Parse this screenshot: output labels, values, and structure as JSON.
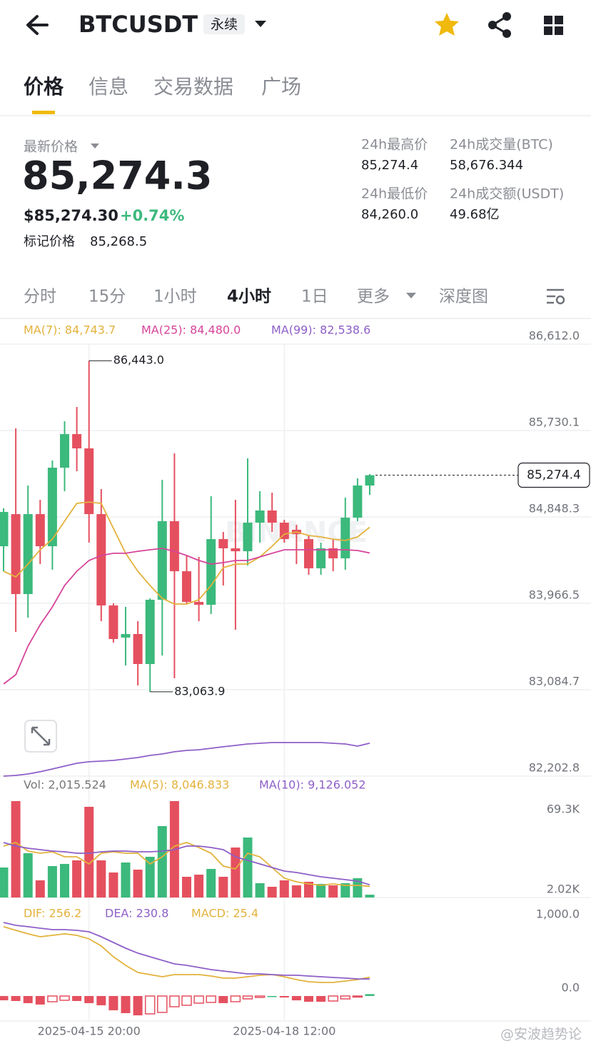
{
  "header": {
    "symbol": "BTCUSDT",
    "tag": "永续"
  },
  "tabs": {
    "items": [
      "价格",
      "信息",
      "交易数据",
      "广场"
    ],
    "active": 0
  },
  "ticker": {
    "last_price_label": "最新价格",
    "last_price": "85,274.3",
    "usd_price": "$85,274.30",
    "change": "+0.74%",
    "mark_label": "标记价格",
    "mark_price": "85,268.5",
    "stats": [
      {
        "label": "24h最高价",
        "value": "85,274.4"
      },
      {
        "label": "24h成交量(BTC)",
        "value": "58,676.344"
      },
      {
        "label": "24h最低价",
        "value": "84,260.0"
      },
      {
        "label": "24h成交额(USDT)",
        "value": "49.68亿"
      }
    ]
  },
  "intervals": {
    "items": [
      "分时",
      "15分",
      "1小时",
      "4小时",
      "1日",
      "更多",
      "深度图"
    ],
    "active": 3
  },
  "footer_watermark": "@安波趋势论",
  "chart_data": [
    {
      "type": "candlestick",
      "x": [
        "2025-04-14 16:00",
        "2025-04-14 20:00",
        "2025-04-15 00:00",
        "2025-04-15 04:00",
        "2025-04-15 08:00",
        "2025-04-15 12:00",
        "2025-04-15 16:00",
        "2025-04-15 20:00",
        "2025-04-16 00:00",
        "2025-04-16 04:00",
        "2025-04-16 08:00",
        "2025-04-16 12:00",
        "2025-04-16 16:00",
        "2025-04-16 20:00",
        "2025-04-17 00:00",
        "2025-04-17 04:00",
        "2025-04-17 08:00",
        "2025-04-17 12:00",
        "2025-04-17 16:00",
        "2025-04-17 20:00",
        "2025-04-18 00:00",
        "2025-04-18 04:00",
        "2025-04-18 08:00",
        "2025-04-18 12:00",
        "2025-04-18 16:00",
        "2025-04-18 20:00",
        "2025-04-19 00:00",
        "2025-04-19 04:00",
        "2025-04-19 08:00",
        "2025-04-19 12:00",
        "2025-04-19 16:00"
      ],
      "open": [
        84549,
        84877,
        84061,
        84877,
        84549,
        85351,
        85694,
        85548,
        84877,
        83945,
        83617,
        83653,
        83347,
        84003,
        84805,
        84294,
        83981,
        83952,
        84622,
        84528,
        84498,
        84790,
        84914,
        84790,
        84717,
        84622,
        84324,
        84528,
        84426,
        84841,
        85169
      ],
      "high": [
        84936,
        85752,
        85169,
        85023,
        85424,
        85825,
        85971,
        86443.0,
        85133,
        83966,
        83930,
        83784,
        84017,
        85227,
        85497,
        84455,
        84440,
        85060,
        84695,
        85023,
        85446,
        85111,
        85096,
        84819,
        84768,
        84659,
        84586,
        84622,
        85045,
        85242,
        85286
      ],
      "low": [
        84294,
        83675,
        83821,
        84367,
        84309,
        85111,
        85315,
        84586,
        83784,
        83566,
        83332,
        83128,
        83063.9,
        83434,
        83201,
        83966,
        83784,
        83857,
        84149,
        83697,
        84353,
        84586,
        84695,
        84586,
        84367,
        84258,
        84258,
        84294,
        84309,
        84805,
        85074
      ],
      "close": [
        84899,
        84061,
        84877,
        84549,
        85351,
        85694,
        85548,
        84877,
        83945,
        83602,
        83653,
        83347,
        84003,
        84805,
        84294,
        83981,
        83952,
        84622,
        84528,
        84498,
        84790,
        84914,
        84790,
        84622,
        84673,
        84324,
        84528,
        84426,
        84841,
        85169,
        85274.4
      ],
      "up_color": "#3cb97c",
      "down_color": "#e5505f",
      "series": [
        {
          "name": "MA(7): 84,743.7",
          "color": "#e3b23c",
          "values": [
            84294,
            84236,
            84367,
            84513,
            84622,
            84805,
            84987,
            85001,
            84987,
            84732,
            84477,
            84294,
            84149,
            84017,
            83959,
            83959,
            84003,
            84149,
            84331,
            84367,
            84367,
            84440,
            84549,
            84673,
            84695,
            84659,
            84644,
            84622,
            84608,
            84644,
            84743.7
          ]
        },
        {
          "name": "MA(25): 84,480.0",
          "color": "#d6459a",
          "values": [
            83143,
            83238,
            83529,
            83748,
            83930,
            84149,
            84294,
            84404,
            84455,
            84477,
            84477,
            84498,
            84513,
            84528,
            84498,
            84455,
            84404,
            84367,
            84382,
            84404,
            84404,
            84440,
            84477,
            84513,
            84513,
            84513,
            84513,
            84513,
            84513,
            84506,
            84480.0
          ]
        },
        {
          "name": "MA(99): 82,538.6",
          "color": "#8e5fc8",
          "values": [
            82203,
            82210,
            82225,
            82247,
            82276,
            82305,
            82334,
            82349,
            82356,
            82363,
            82378,
            82392,
            82414,
            82429,
            82451,
            82465,
            82472,
            82487,
            82502,
            82516,
            82531,
            82538,
            82545,
            82545,
            82545,
            82545,
            82545,
            82538,
            82531,
            82509,
            82538.6
          ]
        }
      ],
      "ylim": [
        82202.8,
        86612.0
      ],
      "yticks": [
        {
          "value": 86612.0,
          "label": "86,612.0"
        },
        {
          "value": 85730.1,
          "label": "85,730.1"
        },
        {
          "value": 84848.3,
          "label": "84,848.3"
        },
        {
          "value": 83966.5,
          "label": "83,966.5"
        },
        {
          "value": 83084.7,
          "label": "83,084.7"
        },
        {
          "value": 82202.8,
          "label": "82,202.8"
        }
      ],
      "xticks": [
        "2025-04-15 20:00",
        "2025-04-18 12:00"
      ],
      "grid": true,
      "annotations": [
        {
          "value": 86443.0,
          "label": "86,443.0"
        },
        {
          "value": 83063.9,
          "label": "83,063.9"
        }
      ],
      "last_price": {
        "value": 85274.4,
        "label": "85,274.4"
      },
      "watermark": "BINANCE"
    },
    {
      "type": "bar",
      "series": [
        {
          "name": "Vol: 2,015.524",
          "type": "bar",
          "color": "#777777",
          "values": [
            21560,
            69300,
            31825,
            12320,
            22587,
            24127,
            26693,
            65193,
            26693,
            17967,
            25153,
            20020,
            29260,
            51333,
            69300,
            14887,
            16427,
            20533,
            14887,
            35933,
            43120,
            10267,
            7700,
            12320,
            8727,
            11293,
            9753,
            8727,
            10267,
            13860,
            2015.524
          ]
        },
        {
          "name": "MA(5): 8,046.833",
          "color": "#e3b23c",
          "values": [
            36958,
            39524,
            33365,
            31825,
            32851,
            29258,
            29258,
            24125,
            31825,
            32851,
            31825,
            31825,
            24125,
            29258,
            36958,
            39524,
            35931,
            31825,
            22585,
            20532,
            31825,
            29258,
            21559,
            13859,
            11293,
            9753,
            8726,
            9753,
            8726,
            8726,
            8046.833
          ]
        },
        {
          "name": "MA(10): 9,126.052",
          "color": "#8e5fc8",
          "values": [
            39524,
            36958,
            35418,
            34391,
            33365,
            32851,
            31825,
            31825,
            32851,
            33365,
            33365,
            32851,
            32851,
            33365,
            34391,
            36958,
            36958,
            35931,
            34391,
            29258,
            26692,
            24125,
            21559,
            18992,
            17966,
            16426,
            14886,
            13859,
            12833,
            11806,
            9126.052
          ]
        }
      ],
      "ylim": [
        0,
        69300
      ],
      "yticks": [
        {
          "value": 69300,
          "label": "69.3K"
        },
        {
          "value": 2020,
          "label": "2.02K"
        }
      ]
    },
    {
      "type": "bar",
      "series": [
        {
          "name": "DIF: 256.2",
          "color": "#e3b23c",
          "values": [
            942,
            893,
            845,
            806,
            825,
            845,
            825,
            777,
            680,
            534,
            417,
            320,
            291,
            262,
            291,
            291,
            291,
            272,
            243,
            243,
            262,
            282,
            291,
            262,
            223,
            194,
            184,
            184,
            204,
            223,
            256.2
          ]
        },
        {
          "name": "DEA: 230.8",
          "color": "#8e5fc8",
          "values": [
            1000,
            961,
            942,
            922,
            903,
            903,
            893,
            874,
            806,
            728,
            650,
            583,
            534,
            485,
            437,
            417,
            388,
            359,
            340,
            320,
            301,
            301,
            291,
            282,
            282,
            272,
            262,
            252,
            243,
            233,
            230.8
          ]
        },
        {
          "name": "MACD: 25.4",
          "type": "bar",
          "color": "#e3b23c",
          "values": [
            -58,
            -68,
            -97,
            -116,
            -78,
            -58,
            -68,
            -97,
            -126,
            -194,
            -233,
            -263,
            -243,
            -223,
            -146,
            -126,
            -97,
            -87,
            -97,
            -77,
            -39,
            -19,
            0,
            -20,
            -59,
            -78,
            -78,
            -68,
            -39,
            -10,
            25.4
          ]
        }
      ],
      "ylim": [
        -340,
        1291
      ],
      "yticks": [
        {
          "value": 1000,
          "label": "1,000.0"
        },
        {
          "value": 0,
          "label": "0.0"
        }
      ]
    }
  ]
}
